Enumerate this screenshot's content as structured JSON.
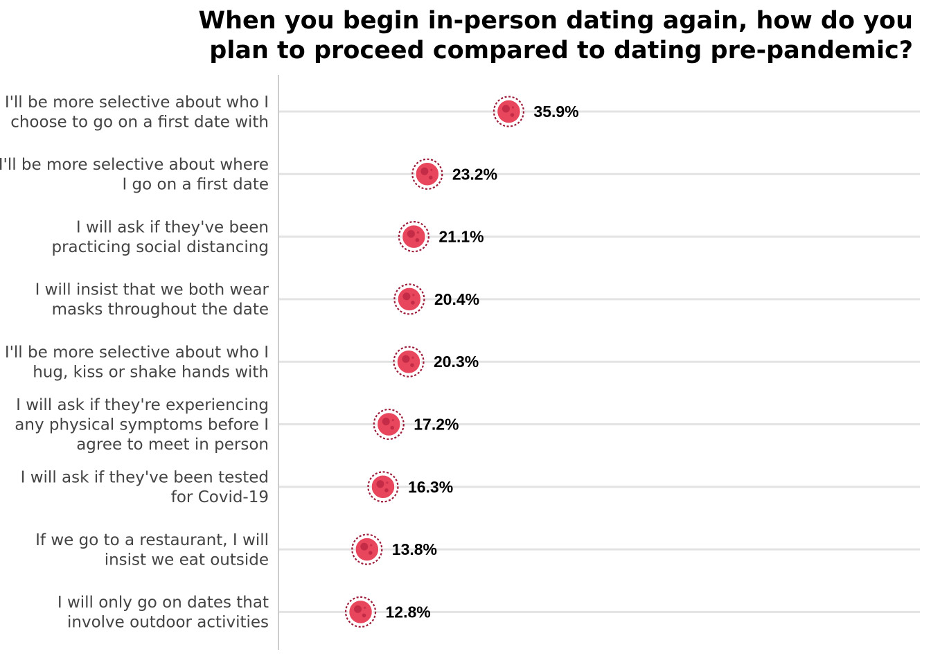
{
  "chart_data": {
    "type": "dot",
    "title": [
      "When you begin in-person dating again, how do you",
      "plan to proceed compared to dating pre-pandemic?"
    ],
    "xlabel": "",
    "ylabel": "",
    "xlim": [
      0,
      100
    ],
    "grid": "horizontal",
    "unit": "%",
    "categories": [
      [
        "I'll be more selective about who I",
        "choose to go on a first date with"
      ],
      [
        "I'll be more selective about where",
        "I go on a first date"
      ],
      [
        "I will ask if they've been",
        "practicing social distancing"
      ],
      [
        "I will insist that we both wear",
        "masks throughout the date"
      ],
      [
        "I'll be more selective about who I",
        "hug, kiss or shake hands with"
      ],
      [
        "I will ask if they're experiencing",
        "any physical symptoms before I",
        "agree to meet in person"
      ],
      [
        "I will ask if they've been tested",
        "for Covid-19"
      ],
      [
        "If we go to a restaurant, I will",
        "insist we eat outside"
      ],
      [
        "I will only go on dates that",
        "involve outdoor activities"
      ]
    ],
    "values": [
      35.9,
      23.2,
      21.1,
      20.4,
      20.3,
      17.2,
      16.3,
      13.8,
      12.8
    ],
    "value_labels": [
      "35.9%",
      "23.2%",
      "21.1%",
      "20.4%",
      "20.3%",
      "17.2%",
      "16.3%",
      "13.8%",
      "12.8%"
    ],
    "marker_icon": "virus-icon",
    "colors": {
      "marker_fill": "#e8465c",
      "marker_stroke": "#9c1c3a",
      "marker_spot": "#b8233f",
      "grid": "#e3e3e3",
      "axis": "#cccccc",
      "label_text": "#444444",
      "value_text": "#000000",
      "title_text": "#000000"
    }
  }
}
